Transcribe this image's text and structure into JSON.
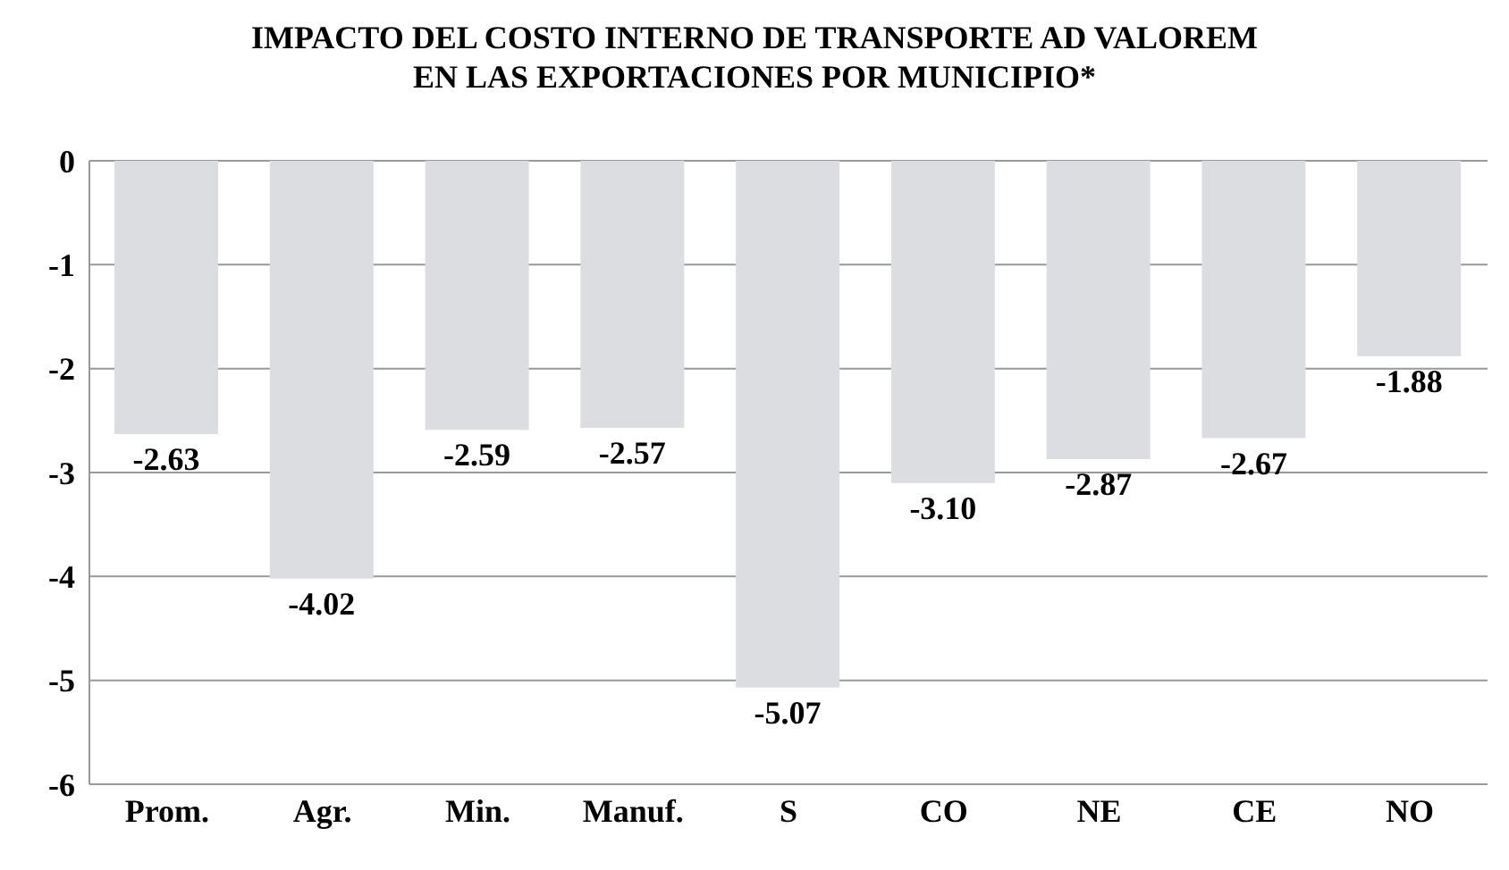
{
  "chart_data": {
    "type": "bar",
    "title": "IMPACTO DEL COSTO INTERNO DE TRANSPORTE AD VALOREM\nEN LAS EXPORTACIONES POR MUNICIPIO*",
    "categories": [
      "Prom.",
      "Agr.",
      "Min.",
      "Manuf.",
      "S",
      "CO",
      "NE",
      "CE",
      "NO"
    ],
    "values": [
      -2.63,
      -4.02,
      -2.59,
      -2.57,
      -5.07,
      -3.1,
      -2.87,
      -2.67,
      -1.88
    ],
    "value_labels": [
      "-2.63",
      "-4.02",
      "-2.59",
      "-2.57",
      "-5.07",
      "-3.10",
      "-2.87",
      "-2.67",
      "-1.88"
    ],
    "color": "#dcdde0",
    "ylim": [
      -6,
      0
    ],
    "yticks": [
      -6,
      -5,
      -4,
      -3,
      -2,
      -1,
      0
    ],
    "grid": "y"
  }
}
